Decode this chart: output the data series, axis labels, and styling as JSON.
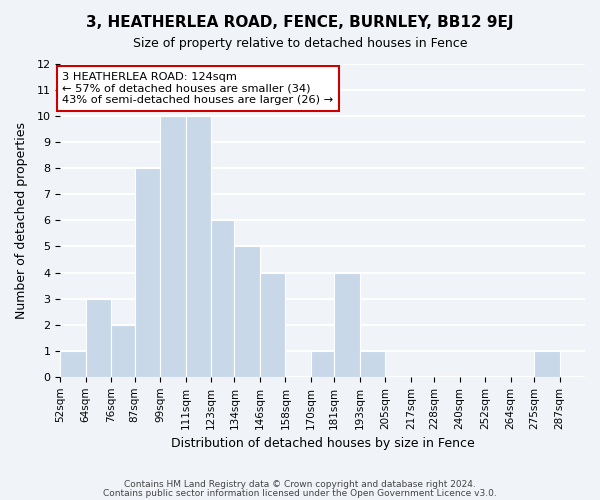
{
  "title": "3, HEATHERLEA ROAD, FENCE, BURNLEY, BB12 9EJ",
  "subtitle": "Size of property relative to detached houses in Fence",
  "xlabel": "Distribution of detached houses by size in Fence",
  "ylabel": "Number of detached properties",
  "bin_labels": [
    "52sqm",
    "64sqm",
    "76sqm",
    "87sqm",
    "99sqm",
    "111sqm",
    "123sqm",
    "134sqm",
    "146sqm",
    "158sqm",
    "170sqm",
    "181sqm",
    "193sqm",
    "205sqm",
    "217sqm",
    "228sqm",
    "240sqm",
    "252sqm",
    "264sqm",
    "275sqm",
    "287sqm"
  ],
  "bin_edges": [
    52,
    64,
    76,
    87,
    99,
    111,
    123,
    134,
    146,
    158,
    170,
    181,
    193,
    205,
    217,
    228,
    240,
    252,
    264,
    275,
    287
  ],
  "bar_heights": [
    1,
    3,
    2,
    8,
    10,
    10,
    6,
    5,
    4,
    0,
    1,
    4,
    1,
    0,
    0,
    0,
    0,
    0,
    0,
    1
  ],
  "bar_color": "#c8d8e8",
  "bar_edge_color": "#ffffff",
  "background_color": "#f0f4f8",
  "grid_color": "#ffffff",
  "property_value": 124,
  "property_bin_index": 6,
  "annotation_title": "3 HEATHERLEA ROAD: 124sqm",
  "annotation_line1": "← 57% of detached houses are smaller (34)",
  "annotation_line2": "43% of semi-detached houses are larger (26) →",
  "annotation_box_color": "#ffffff",
  "annotation_border_color": "#cc0000",
  "ylim": [
    0,
    12
  ],
  "yticks": [
    0,
    1,
    2,
    3,
    4,
    5,
    6,
    7,
    8,
    9,
    10,
    11,
    12
  ],
  "footer_line1": "Contains HM Land Registry data © Crown copyright and database right 2024.",
  "footer_line2": "Contains public sector information licensed under the Open Government Licence v3.0."
}
